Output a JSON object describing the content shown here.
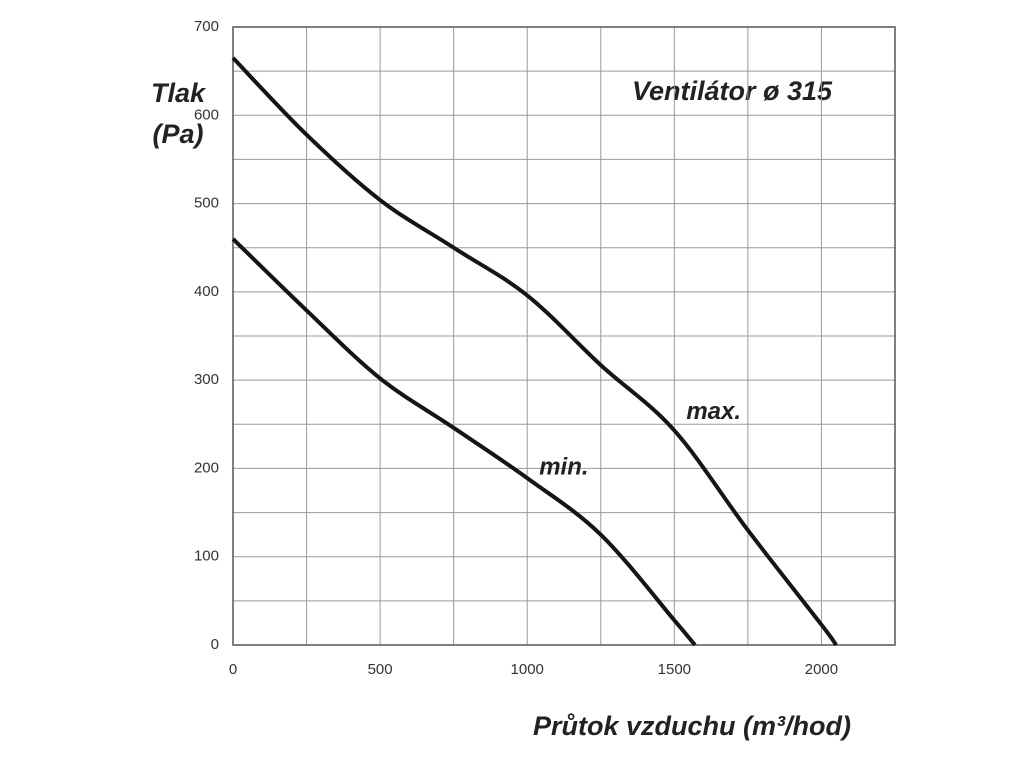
{
  "chart_data": {
    "type": "line",
    "title": "Ventilátor ø 315",
    "x_label": "Průtok vzduchu (m³/hod)",
    "y_label_lines": [
      "Tlak",
      "(Pa)"
    ],
    "xlim": [
      0,
      2250
    ],
    "ylim": [
      0,
      700
    ],
    "xticks": [
      0,
      500,
      1000,
      1500,
      2000
    ],
    "yticks": [
      0,
      100,
      200,
      300,
      400,
      500,
      600,
      700
    ],
    "x_minor_ticks": [
      250,
      750,
      1250,
      1750
    ],
    "y_minor_ticks": [
      50,
      150,
      250,
      350,
      450,
      550,
      650
    ],
    "grid": true,
    "series": [
      {
        "name": "max.",
        "color": "#1a1410",
        "x": [
          0,
          250,
          500,
          750,
          1000,
          1250,
          1500,
          1750,
          2000,
          2050
        ],
        "values": [
          665,
          578,
          504,
          450,
          396,
          317,
          243,
          130,
          23,
          0
        ]
      },
      {
        "name": "min.",
        "color": "#1a1410",
        "x": [
          0,
          250,
          500,
          750,
          1000,
          1250,
          1500,
          1570
        ],
        "values": [
          460,
          379,
          302,
          246,
          189,
          125,
          28,
          0
        ]
      }
    ]
  }
}
